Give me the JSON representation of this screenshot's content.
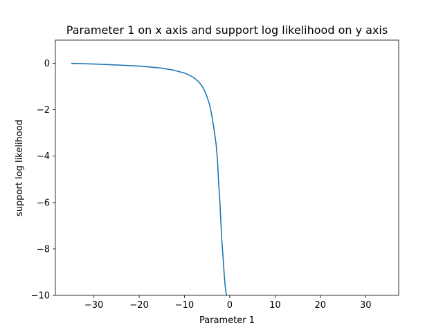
{
  "chart_data": {
    "type": "line",
    "title": "Parameter 1 on x axis and support log likelihood on y axis",
    "xlabel": "Parameter 1",
    "ylabel": "support log likelihood",
    "xlim": [
      -38.5,
      37.3
    ],
    "ylim": [
      -10,
      1
    ],
    "xticks": [
      -30,
      -20,
      -10,
      0,
      10,
      20,
      30
    ],
    "xtick_labels": [
      "−30",
      "−20",
      "−10",
      "0",
      "10",
      "20",
      "30"
    ],
    "yticks": [
      0,
      -2,
      -4,
      -6,
      -8,
      -10
    ],
    "ytick_labels": [
      "0",
      "−2",
      "−4",
      "−6",
      "−8",
      "−10"
    ],
    "grid": false,
    "series": [
      {
        "color": "#1f77b4",
        "x": [
          -35,
          -30,
          -25,
          -20,
          -17.5,
          -15,
          -12.5,
          -10,
          -9,
          -8,
          -7,
          -6.5,
          -6,
          -5.5,
          -5,
          -4.5,
          -4,
          -3.5,
          -3,
          -2.7,
          -2.5,
          -2.2,
          -2,
          -1.8,
          -1.5,
          -1.3,
          -1.1,
          -0.9,
          -0.7
        ],
        "y": [
          0,
          -0.03,
          -0.07,
          -0.12,
          -0.16,
          -0.21,
          -0.29,
          -0.42,
          -0.5,
          -0.61,
          -0.77,
          -0.88,
          -1.02,
          -1.2,
          -1.45,
          -1.75,
          -2.2,
          -2.8,
          -3.5,
          -4.2,
          -5.0,
          -5.9,
          -6.7,
          -7.5,
          -8.3,
          -8.9,
          -9.4,
          -9.8,
          -10.0
        ]
      }
    ]
  }
}
